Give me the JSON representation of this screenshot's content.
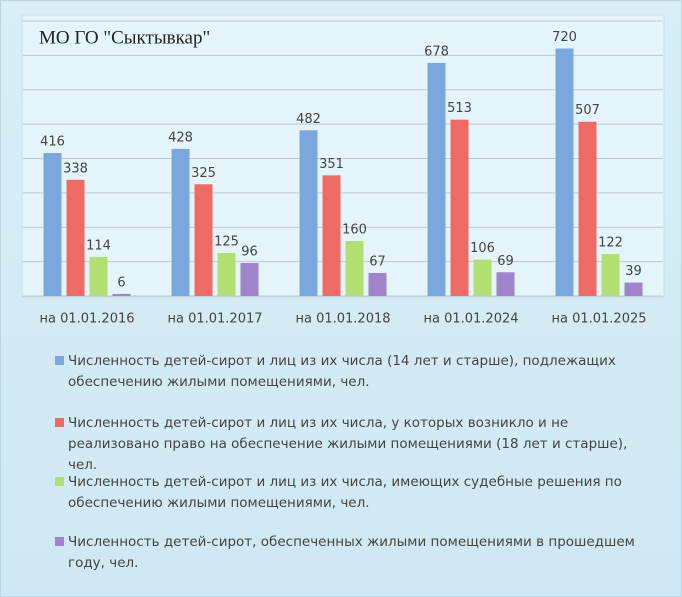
{
  "chart_data": {
    "type": "bar",
    "title": "МО ГО \"Сыктывкар\"",
    "categories": [
      "на 01.01.2016",
      "на 01.01.2017",
      "на 01.01.2018",
      "на 01.01.2024",
      "на 01.01.2025"
    ],
    "series": [
      {
        "name": "Численность детей-сирот и лиц из их числа (14 лет и старше), подлежащих обеспечению жилыми помещениями, чел.",
        "color": "#7ba6e0",
        "values": [
          416,
          428,
          482,
          678,
          720
        ]
      },
      {
        "name": "Численность детей-сирот и лиц из их числа, у которых возникло и не реализовано право на обеспечение жилыми помещениями  (18 лет и старше), чел.",
        "color": "#ee6a62",
        "values": [
          338,
          325,
          351,
          513,
          507
        ]
      },
      {
        "name": "Численность детей-сирот и лиц из их числа, имеющих судебные решения по обеспечению жилыми помещениями, чел.",
        "color": "#b1df72",
        "values": [
          114,
          125,
          160,
          106,
          122
        ]
      },
      {
        "name": "Численность детей-сирот, обеспеченных жилыми помещениями в прошедшем году, чел.",
        "color": "#9f84cc",
        "values": [
          6,
          96,
          67,
          69,
          39
        ]
      }
    ],
    "ylim": [
      0,
      800
    ],
    "yticks": [
      0,
      100,
      200,
      300,
      400,
      500,
      600,
      700,
      800
    ],
    "grid": true
  }
}
